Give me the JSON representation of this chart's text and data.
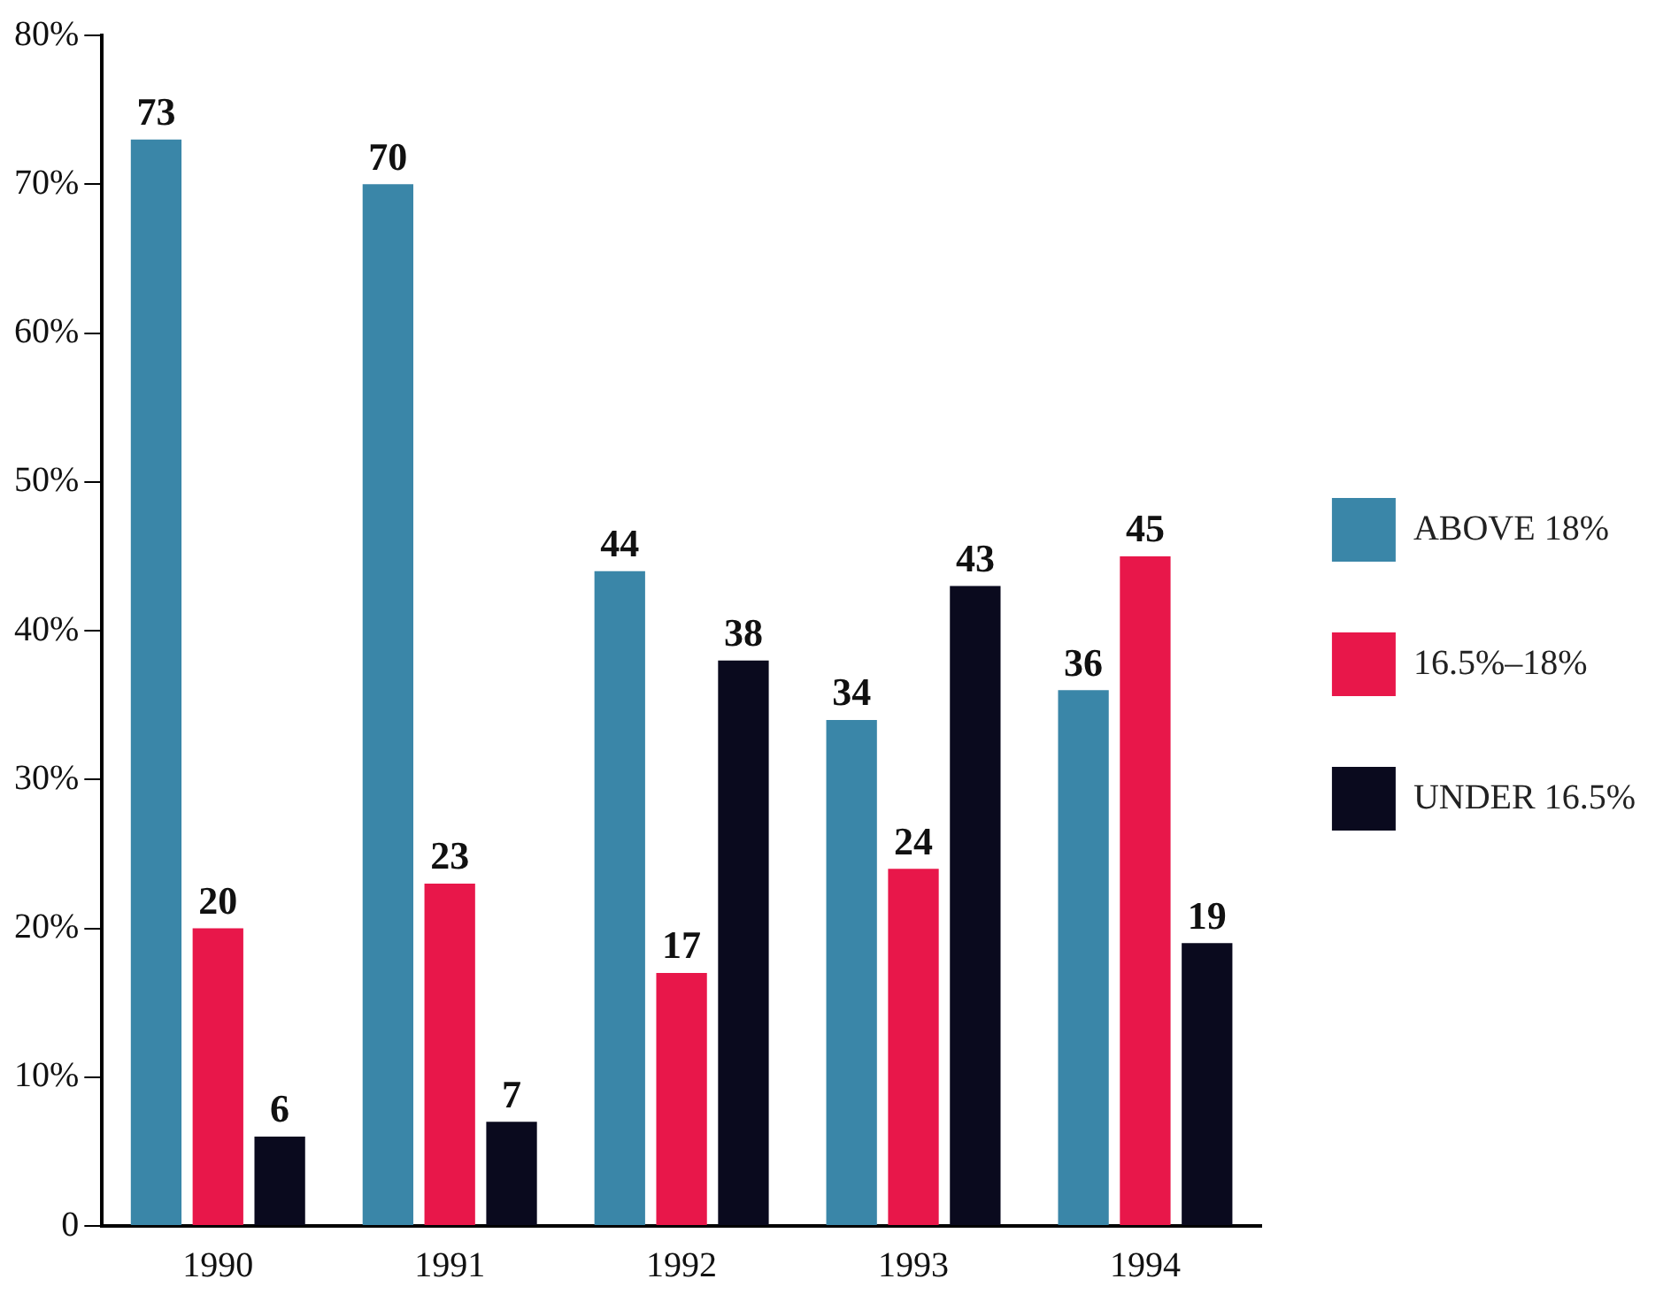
{
  "chart_data": {
    "type": "bar",
    "categories": [
      "1990",
      "1991",
      "1992",
      "1993",
      "1994"
    ],
    "series": [
      {
        "name": "ABOVE 18%",
        "color": "#3a86a8",
        "values": [
          73,
          70,
          44,
          34,
          36
        ]
      },
      {
        "name": "16.5%–18%",
        "color": "#e8174a",
        "values": [
          20,
          23,
          17,
          24,
          45
        ]
      },
      {
        "name": "UNDER 16.5%",
        "color": "#0a0a1e",
        "values": [
          6,
          7,
          38,
          43,
          19
        ]
      }
    ],
    "ylim": [
      0,
      80
    ],
    "yticks": [
      {
        "value": 0,
        "label": "0"
      },
      {
        "value": 10,
        "label": "10%"
      },
      {
        "value": 20,
        "label": "20%"
      },
      {
        "value": 30,
        "label": "30%"
      },
      {
        "value": 40,
        "label": "40%"
      },
      {
        "value": 50,
        "label": "50%"
      },
      {
        "value": 60,
        "label": "60%"
      },
      {
        "value": 70,
        "label": "70%"
      },
      {
        "value": 80,
        "label": "80%"
      }
    ],
    "grid": false,
    "legend": "right",
    "data_labels": true
  }
}
